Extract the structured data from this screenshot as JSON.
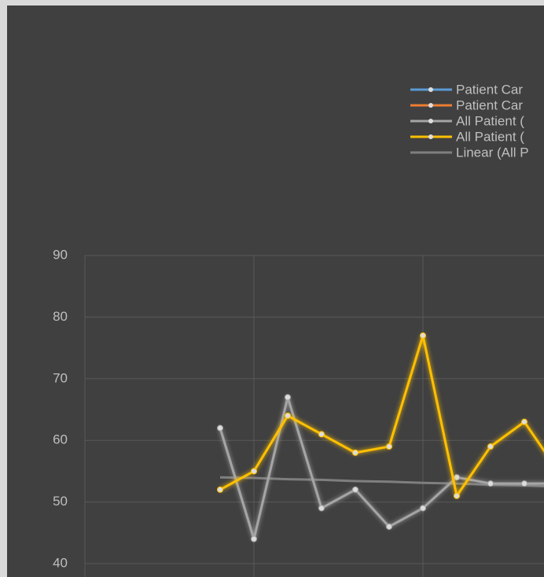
{
  "chart_data": {
    "type": "line",
    "categories": [
      null,
      null,
      null,
      null,
      null,
      null,
      null,
      null,
      null,
      null,
      null
    ],
    "series": [
      {
        "name": "Patient Car",
        "color": "#5b9bd5",
        "values": [
          null,
          null,
          null,
          null,
          null,
          null,
          null,
          null,
          null,
          null,
          null
        ]
      },
      {
        "name": "Patient Car",
        "color": "#ed7d31",
        "values": [
          null,
          null,
          null,
          null,
          null,
          null,
          null,
          null,
          null,
          null,
          null
        ]
      },
      {
        "name": "All Patient (",
        "color": "#a5a5a5",
        "values": [
          62,
          44,
          67,
          49,
          52,
          46,
          49,
          54,
          53,
          53,
          53
        ]
      },
      {
        "name": "All Patient (",
        "color": "#ffc000",
        "values": [
          52,
          55,
          64,
          61,
          58,
          59,
          77,
          51,
          59,
          63,
          55
        ]
      },
      {
        "name": "Linear (All P",
        "color": "#7f7f7f",
        "values": [
          54,
          53.9,
          53.7,
          53.6,
          53.4,
          53.3,
          53.1,
          53,
          52.8,
          52.7,
          52.5
        ]
      }
    ],
    "ylim": [
      40,
      90
    ],
    "yticks": [
      40,
      50,
      60,
      70,
      80,
      90
    ],
    "grid": true
  }
}
